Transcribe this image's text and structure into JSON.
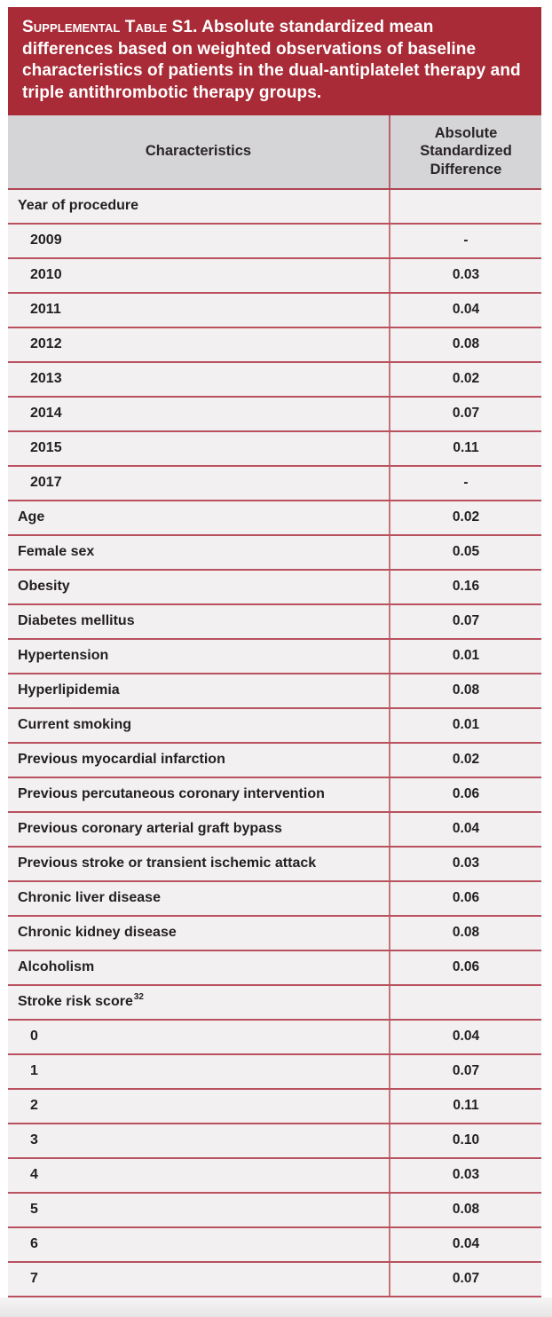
{
  "title": {
    "smallcaps": "Supplemental Table S1.",
    "text": "Absolute standardized mean differences based on weighted observations of baseline characteristics of patients in the dual-antiplatelet therapy and triple antithrombotic therapy groups."
  },
  "colors": {
    "banner_red": "#a92b37",
    "rule_red": "#b9515f",
    "header_gray": "#d5d4d6",
    "row_bg": "#f2f0f0",
    "text_dark": "#231f20"
  },
  "table": {
    "columns": [
      "Characteristics",
      "Absolute Standardized Difference"
    ],
    "rows": [
      {
        "label": "Year of procedure",
        "value": "",
        "indent": 0
      },
      {
        "label": "2009",
        "value": "-",
        "indent": 1
      },
      {
        "label": "2010",
        "value": "0.03",
        "indent": 1
      },
      {
        "label": "2011",
        "value": "0.04",
        "indent": 1
      },
      {
        "label": "2012",
        "value": "0.08",
        "indent": 1
      },
      {
        "label": "2013",
        "value": "0.02",
        "indent": 1
      },
      {
        "label": "2014",
        "value": "0.07",
        "indent": 1
      },
      {
        "label": "2015",
        "value": "0.11",
        "indent": 1
      },
      {
        "label": "2017",
        "value": "-",
        "indent": 1
      },
      {
        "label": "Age",
        "value": "0.02",
        "indent": 0
      },
      {
        "label": "Female sex",
        "value": "0.05",
        "indent": 0
      },
      {
        "label": "Obesity",
        "value": "0.16",
        "indent": 0
      },
      {
        "label": "Diabetes mellitus",
        "value": "0.07",
        "indent": 0
      },
      {
        "label": "Hypertension",
        "value": "0.01",
        "indent": 0
      },
      {
        "label": "Hyperlipidemia",
        "value": "0.08",
        "indent": 0
      },
      {
        "label": "Current smoking",
        "value": "0.01",
        "indent": 0
      },
      {
        "label": "Previous myocardial infarction",
        "value": "0.02",
        "indent": 0
      },
      {
        "label": "Previous percutaneous coronary intervention",
        "value": "0.06",
        "indent": 0
      },
      {
        "label": "Previous coronary arterial graft bypass",
        "value": "0.04",
        "indent": 0
      },
      {
        "label": "Previous stroke or transient ischemic attack",
        "value": "0.03",
        "indent": 0
      },
      {
        "label": "Chronic liver disease",
        "value": "0.06",
        "indent": 0
      },
      {
        "label": "Chronic kidney disease",
        "value": "0.08",
        "indent": 0
      },
      {
        "label": "Alcoholism",
        "value": "0.06",
        "indent": 0
      },
      {
        "label": "Stroke risk score",
        "sup": "32",
        "value": "",
        "indent": 0
      },
      {
        "label": "0",
        "value": "0.04",
        "indent": 1
      },
      {
        "label": "1",
        "value": "0.07",
        "indent": 1
      },
      {
        "label": "2",
        "value": "0.11",
        "indent": 1
      },
      {
        "label": "3",
        "value": "0.10",
        "indent": 1
      },
      {
        "label": "4",
        "value": "0.03",
        "indent": 1
      },
      {
        "label": "5",
        "value": "0.08",
        "indent": 1
      },
      {
        "label": "6",
        "value": "0.04",
        "indent": 1
      },
      {
        "label": "7",
        "value": "0.07",
        "indent": 1
      }
    ]
  }
}
